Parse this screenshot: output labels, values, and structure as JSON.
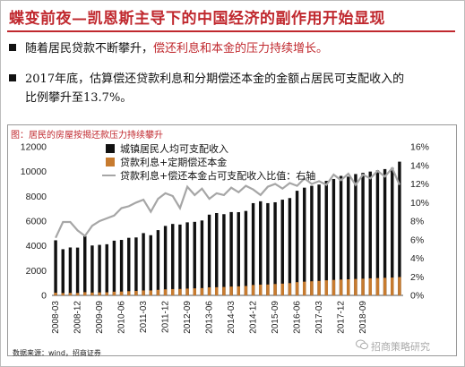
{
  "slide": {
    "title": "蝶变前夜—凯恩斯主导下的中国经济的副作用开始显现",
    "bullet1_a": "随着居民贷款不断攀升，",
    "bullet1_b": "偿还利息和本金的压力持续增长。",
    "bullet2_line1": "2017年底，估算偿还贷款利息和分期偿还本金的金额占居民可支配收入的",
    "bullet2_line2": "比例攀升至13.7%。",
    "chart_caption": "图：居民的房屋按揭还款压力持续攀升",
    "source": "数据来源：wind，招商证券",
    "watermark": "招商策略研究"
  },
  "colors": {
    "title": "#c0282e",
    "bar_income": "#111111",
    "bar_payment": "#c77b2f",
    "line_ratio": "#a6a6a6"
  },
  "icons": {
    "watermark_icon": "wechat-bubble-icon"
  },
  "chart_data": {
    "type": "bar",
    "series": [
      {
        "name": "城镇居民人均可支配收入",
        "values": [
          4450,
          3730,
          3870,
          3860,
          4790,
          4030,
          4080,
          4130,
          4420,
          4480,
          4650,
          4680,
          5030,
          4860,
          5270,
          5610,
          5770,
          5720,
          5900,
          5940,
          6050,
          6520,
          6650,
          6560,
          6730,
          6720,
          6820,
          7450,
          7600,
          7450,
          7520,
          7730,
          7860,
          8450,
          8700,
          8850,
          8950,
          9250,
          9400,
          9650,
          9590,
          9800,
          9900,
          10000,
          10100,
          10200,
          10300,
          10800
        ]
      },
      {
        "name": "贷款利息+定期偿还本金",
        "values": [
          220,
          190,
          200,
          200,
          260,
          230,
          240,
          250,
          300,
          310,
          340,
          360,
          400,
          400,
          450,
          490,
          510,
          520,
          550,
          570,
          590,
          650,
          660,
          680,
          710,
          730,
          760,
          840,
          870,
          880,
          920,
          950,
          990,
          1070,
          1110,
          1140,
          1170,
          1220,
          1250,
          1280,
          1300,
          1330,
          1350,
          1380,
          1400,
          1420,
          1440,
          1480
        ]
      },
      {
        "name": "贷款利息+偿还本金占可支配收入比值：右轴",
        "axis": "right",
        "values": [
          6.2,
          7.9,
          7.9,
          7.0,
          6.4,
          7.5,
          8.0,
          8.3,
          8.6,
          9.4,
          9.6,
          10.0,
          10.3,
          9.0,
          10.4,
          11.0,
          10.7,
          9.4,
          11.7,
          10.8,
          11.5,
          10.4,
          11.0,
          10.8,
          11.6,
          11.1,
          11.8,
          11.4,
          10.8,
          11.7,
          12.0,
          11.5,
          12.1,
          11.8,
          12.6,
          12.0,
          12.3,
          11.9,
          13.0,
          12.4,
          13.1,
          11.9,
          13.0,
          12.6,
          13.4,
          12.8,
          13.7,
          11.9
        ]
      }
    ],
    "x_tick_labels": [
      "2008-03",
      "2008-12",
      "2009-09",
      "2010-06",
      "2011-03",
      "2011-12",
      "2012-09",
      "2013-06",
      "2014-03",
      "2014-12",
      "2015-09",
      "2016-06",
      "2017-03",
      "2017-12",
      "2018-09"
    ],
    "y_left": {
      "min": 0,
      "max": 12000,
      "ticks": [
        0,
        2000,
        4000,
        6000,
        8000,
        10000,
        12000
      ]
    },
    "y_right": {
      "min": 0,
      "max": 16,
      "ticks": [
        "0%",
        "2%",
        "4%",
        "6%",
        "8%",
        "10%",
        "12%",
        "14%",
        "16%"
      ]
    },
    "legend_position": "top-center",
    "grid": false
  }
}
